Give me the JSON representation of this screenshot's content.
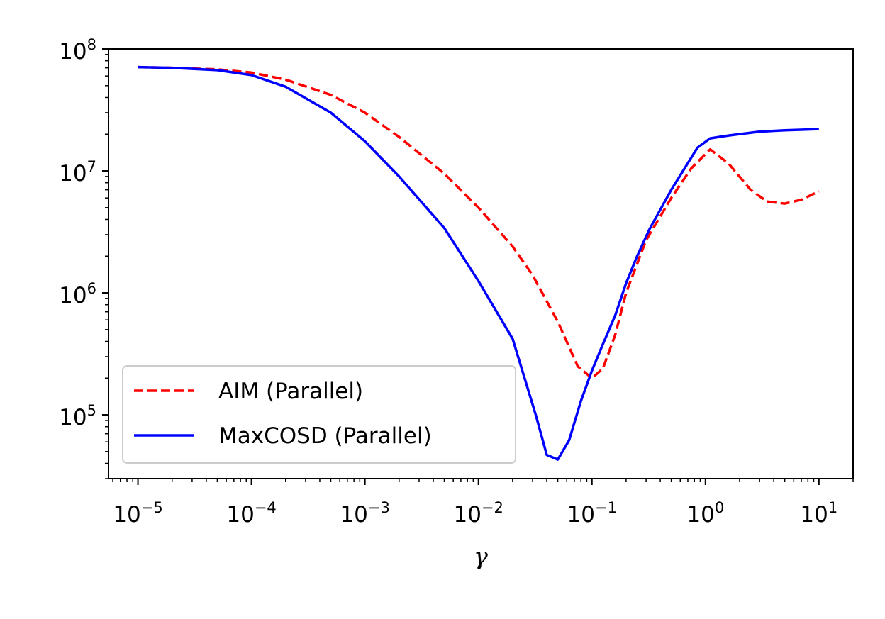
{
  "chart_data": {
    "type": "line",
    "title": "",
    "xlabel": "γ",
    "ylabel": "",
    "xscale": "log",
    "yscale": "log",
    "xlim": [
      5.5e-06,
      20
    ],
    "ylim": [
      30000,
      100000000
    ],
    "grid": false,
    "legend_position": "lower-left",
    "x_ticks": [
      {
        "base": "10",
        "exp": "−5",
        "value": 1e-05
      },
      {
        "base": "10",
        "exp": "−4",
        "value": 0.0001
      },
      {
        "base": "10",
        "exp": "−3",
        "value": 0.001
      },
      {
        "base": "10",
        "exp": "−2",
        "value": 0.01
      },
      {
        "base": "10",
        "exp": "−1",
        "value": 0.1
      },
      {
        "base": "10",
        "exp": "0",
        "value": 1
      },
      {
        "base": "10",
        "exp": "1",
        "value": 10
      }
    ],
    "y_ticks": [
      {
        "base": "10",
        "exp": "5",
        "value": 100000.0
      },
      {
        "base": "10",
        "exp": "6",
        "value": 1000000.0
      },
      {
        "base": "10",
        "exp": "7",
        "value": 10000000.0
      },
      {
        "base": "10",
        "exp": "8",
        "value": 100000000.0
      }
    ],
    "series": [
      {
        "name": "AIM (Parallel)",
        "color": "#ff0000",
        "style": "dashed",
        "x": [
          1e-05,
          2e-05,
          5e-05,
          0.0001,
          0.0002,
          0.0005,
          0.001,
          0.002,
          0.005,
          0.01,
          0.02,
          0.03,
          0.05,
          0.075,
          0.1,
          0.125,
          0.16,
          0.2,
          0.3,
          0.5,
          0.75,
          1.1,
          1.6,
          2.5,
          3.5,
          5,
          7,
          10
        ],
        "y": [
          71000000.0,
          70000000.0,
          68000000.0,
          64000000.0,
          56000000.0,
          42000000.0,
          30000000.0,
          19000000.0,
          9500000.0,
          5000000.0,
          2400000.0,
          1400000.0,
          580000.0,
          250000.0,
          200000.0,
          240000.0,
          450000.0,
          1000000.0,
          2700000.0,
          6000000.0,
          10500000.0,
          15000000.0,
          11500000.0,
          7000000.0,
          5600000.0,
          5400000.0,
          5800000.0,
          6800000.0
        ]
      },
      {
        "name": "MaxCOSD (Parallel)",
        "color": "#0000ff",
        "style": "solid",
        "x": [
          1e-05,
          2e-05,
          5e-05,
          0.0001,
          0.0002,
          0.0005,
          0.001,
          0.002,
          0.005,
          0.01,
          0.02,
          0.032,
          0.04,
          0.05,
          0.063,
          0.08,
          0.1,
          0.125,
          0.16,
          0.2,
          0.25,
          0.32,
          0.5,
          0.85,
          1.1,
          1.6,
          3,
          5,
          10
        ],
        "y": [
          71000000.0,
          70000000.0,
          67000000.0,
          61000000.0,
          49000000.0,
          30000000.0,
          17500000.0,
          9000000.0,
          3400000.0,
          1250000.0,
          420000.0,
          100000.0,
          47000.0,
          43000.0,
          62000.0,
          130000.0,
          230000.0,
          380000.0,
          650000.0,
          1200000.0,
          2000000.0,
          3300000.0,
          7000000.0,
          15500000.0,
          18500000.0,
          19500000.0,
          21000000.0,
          21500000.0,
          22000000.0
        ]
      }
    ]
  }
}
